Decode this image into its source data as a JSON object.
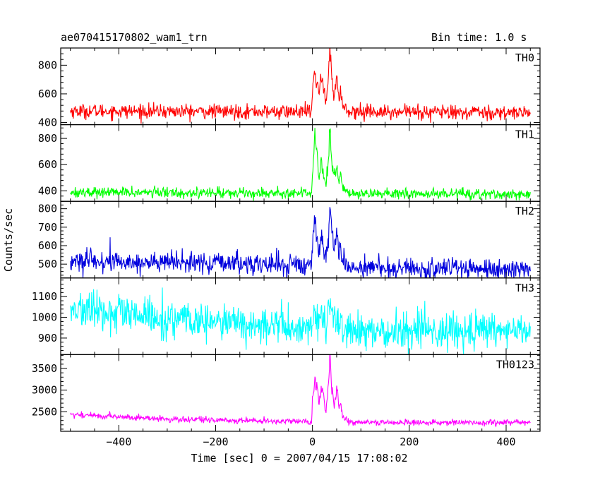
{
  "header": {
    "title": "ae070415170802_wam1_trn",
    "bin_time": "Bin time: 1.0 s"
  },
  "colors": {
    "TH0": "#ff0000",
    "TH1": "#00ff00",
    "TH2": "#0000dd",
    "TH3": "#00ffff",
    "TH0123": "#ff00ff"
  },
  "chart_data": {
    "type": "line",
    "title": "ae070415170802_wam1_trn",
    "subtitle": "Bin time: 1.0 s",
    "xlabel": "Time [sec] 0 = 2007/04/15 17:08:02",
    "ylabel": "Counts/sec",
    "xlim": [
      -520,
      470
    ],
    "xticks": [
      -400,
      -200,
      0,
      200,
      400
    ],
    "x_tick_labels": [
      "−400",
      "−200",
      "0",
      "200",
      "400"
    ],
    "x_range": [
      -500,
      450
    ],
    "bin_size": 1.0,
    "grid": false,
    "panels": [
      {
        "name": "TH0",
        "ylim": [
          385,
          920
        ],
        "yticks": [
          400,
          600,
          800
        ],
        "baseline_profile": [
          [
            -500,
            480
          ],
          [
            450,
            470
          ]
        ],
        "noise": 25,
        "burst_scale": 1.0,
        "burst": [
          [
            -2,
            0
          ],
          [
            0,
            130
          ],
          [
            5,
            270
          ],
          [
            10,
            220
          ],
          [
            14,
            100
          ],
          [
            18,
            250
          ],
          [
            22,
            210
          ],
          [
            28,
            60
          ],
          [
            33,
            270
          ],
          [
            36,
            440
          ],
          [
            40,
            240
          ],
          [
            45,
            120
          ],
          [
            50,
            240
          ],
          [
            55,
            100
          ],
          [
            58,
            160
          ],
          [
            62,
            40
          ],
          [
            70,
            20
          ],
          [
            80,
            0
          ]
        ]
      },
      {
        "name": "TH1",
        "ylim": [
          320,
          905
        ],
        "yticks": [
          400,
          600,
          800
        ],
        "baseline_profile": [
          [
            -500,
            390
          ],
          [
            450,
            375
          ]
        ],
        "noise": 20,
        "burst_scale": 1.0,
        "burst": [
          [
            -2,
            0
          ],
          [
            0,
            130
          ],
          [
            5,
            410
          ],
          [
            10,
            270
          ],
          [
            14,
            100
          ],
          [
            18,
            250
          ],
          [
            22,
            160
          ],
          [
            28,
            50
          ],
          [
            33,
            270
          ],
          [
            36,
            500
          ],
          [
            40,
            240
          ],
          [
            45,
            120
          ],
          [
            50,
            220
          ],
          [
            55,
            100
          ],
          [
            58,
            150
          ],
          [
            62,
            40
          ],
          [
            70,
            20
          ],
          [
            80,
            0
          ]
        ]
      },
      {
        "name": "TH2",
        "ylim": [
          425,
          840
        ],
        "yticks": [
          500,
          600,
          700,
          800
        ],
        "baseline_profile": [
          [
            -500,
            515
          ],
          [
            -200,
            505
          ],
          [
            0,
            495
          ],
          [
            100,
            480
          ],
          [
            450,
            470
          ]
        ],
        "noise": 30,
        "burst_scale": 1.0,
        "burst": [
          [
            -2,
            0
          ],
          [
            0,
            90
          ],
          [
            5,
            230
          ],
          [
            10,
            140
          ],
          [
            14,
            60
          ],
          [
            18,
            180
          ],
          [
            22,
            130
          ],
          [
            28,
            40
          ],
          [
            33,
            200
          ],
          [
            36,
            320
          ],
          [
            40,
            190
          ],
          [
            45,
            90
          ],
          [
            50,
            200
          ],
          [
            55,
            90
          ],
          [
            58,
            130
          ],
          [
            62,
            30
          ],
          [
            70,
            10
          ],
          [
            80,
            0
          ]
        ]
      },
      {
        "name": "TH3",
        "ylim": [
          820,
          1190
        ],
        "yticks": [
          900,
          1000,
          1100
        ],
        "baseline_profile": [
          [
            -500,
            1040
          ],
          [
            -300,
            990
          ],
          [
            -100,
            960
          ],
          [
            0,
            950
          ],
          [
            200,
            935
          ],
          [
            450,
            935
          ]
        ],
        "noise": 45,
        "burst_scale": 0.3,
        "burst": [
          [
            -2,
            0
          ],
          [
            0,
            130
          ],
          [
            5,
            270
          ],
          [
            10,
            220
          ],
          [
            14,
            100
          ],
          [
            18,
            250
          ],
          [
            22,
            210
          ],
          [
            28,
            60
          ],
          [
            33,
            270
          ],
          [
            36,
            440
          ],
          [
            40,
            240
          ],
          [
            45,
            120
          ],
          [
            50,
            240
          ],
          [
            55,
            100
          ],
          [
            58,
            160
          ],
          [
            62,
            40
          ],
          [
            70,
            20
          ],
          [
            80,
            0
          ]
        ]
      },
      {
        "name": "TH0123",
        "ylim": [
          2050,
          3820
        ],
        "yticks": [
          2500,
          3000,
          3500
        ],
        "baseline_profile": [
          [
            -500,
            2440
          ],
          [
            -300,
            2330
          ],
          [
            -100,
            2290
          ],
          [
            0,
            2270
          ],
          [
            100,
            2250
          ],
          [
            450,
            2250
          ]
        ],
        "noise": 35,
        "burst_scale": 1.0,
        "burst": [
          [
            -2,
            0
          ],
          [
            0,
            500
          ],
          [
            5,
            1050
          ],
          [
            10,
            800
          ],
          [
            14,
            350
          ],
          [
            18,
            900
          ],
          [
            22,
            650
          ],
          [
            28,
            200
          ],
          [
            33,
            900
          ],
          [
            36,
            1480
          ],
          [
            40,
            800
          ],
          [
            45,
            400
          ],
          [
            50,
            800
          ],
          [
            55,
            350
          ],
          [
            58,
            500
          ],
          [
            62,
            120
          ],
          [
            70,
            60
          ],
          [
            80,
            0
          ]
        ]
      }
    ]
  }
}
